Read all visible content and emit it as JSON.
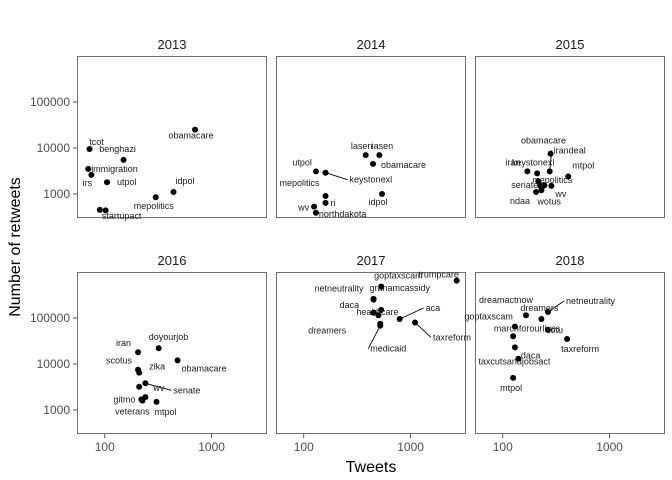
{
  "chart_data": {
    "type": "scatter",
    "xlabel": "Tweets",
    "ylabel": "Number of retweets",
    "xscale": "log10",
    "yscale": "log10",
    "xlim": [
      55,
      3300
    ],
    "ylim": [
      300,
      1000000
    ],
    "x_ticks": [
      {
        "value": 100,
        "label": "100"
      },
      {
        "value": 1000,
        "label": "1000"
      }
    ],
    "y_ticks": [
      {
        "value": 1000,
        "label": "1000"
      },
      {
        "value": 10000,
        "label": "10000"
      },
      {
        "value": 100000,
        "label": "100000"
      }
    ],
    "grid": false,
    "facets": [
      {
        "title": "2013",
        "points": [
          {
            "label": "obamacare",
            "x": 700,
            "y": 25000
          },
          {
            "label": "tcot",
            "x": 72,
            "y": 9500
          },
          {
            "label": "benghazi",
            "x": 150,
            "y": 5500
          },
          {
            "label": "immigration",
            "x": 70,
            "y": 3500
          },
          {
            "label": "irs",
            "x": 75,
            "y": 2600
          },
          {
            "label": "utpol",
            "x": 105,
            "y": 1800
          },
          {
            "label": "idpol",
            "x": 440,
            "y": 1100
          },
          {
            "label": "mepolitics",
            "x": 300,
            "y": 850
          },
          {
            "label": "startupact",
            "x": 90,
            "y": 450
          },
          {
            "label": "",
            "x": 102,
            "y": 440
          }
        ]
      },
      {
        "title": "2014",
        "points": [
          {
            "label": "lasen",
            "x": 380,
            "y": 7000
          },
          {
            "label": "iasen",
            "x": 510,
            "y": 7000
          },
          {
            "label": "obamacare",
            "x": 445,
            "y": 4500
          },
          {
            "label": "utpol",
            "x": 130,
            "y": 3100
          },
          {
            "label": "keystonexl",
            "x": 160,
            "y": 2900
          },
          {
            "label": "mepolitics",
            "x": 160,
            "y": 900
          },
          {
            "label": "idpol",
            "x": 540,
            "y": 1000
          },
          {
            "label": "wv",
            "x": 125,
            "y": 530
          },
          {
            "label": "ri",
            "x": 160,
            "y": 640
          },
          {
            "label": "northdakota",
            "x": 130,
            "y": 390
          }
        ]
      },
      {
        "title": "2015",
        "points": [
          {
            "label": "obamacare",
            "x": 280,
            "y": 7500
          },
          {
            "label": "irandeal",
            "x": 275,
            "y": 3100
          },
          {
            "label": "iran",
            "x": 170,
            "y": 3100
          },
          {
            "label": "keystonexl",
            "x": 210,
            "y": 2800
          },
          {
            "label": "mtpol",
            "x": 410,
            "y": 2400
          },
          {
            "label": "mepolitics",
            "x": 215,
            "y": 1900
          },
          {
            "label": "senate",
            "x": 245,
            "y": 1550
          },
          {
            "label": "",
            "x": 225,
            "y": 1500
          },
          {
            "label": "",
            "x": 235,
            "y": 1450
          },
          {
            "label": "wv",
            "x": 285,
            "y": 1500
          },
          {
            "label": "ndaa",
            "x": 205,
            "y": 1100
          },
          {
            "label": "wotus",
            "x": 230,
            "y": 1200
          }
        ]
      },
      {
        "title": "2016",
        "points": [
          {
            "label": "iran",
            "x": 205,
            "y": 18000
          },
          {
            "label": "doyourjob",
            "x": 320,
            "y": 22000
          },
          {
            "label": "obamacare",
            "x": 480,
            "y": 12000
          },
          {
            "label": "scotus",
            "x": 205,
            "y": 7500
          },
          {
            "label": "zika",
            "x": 210,
            "y": 6500
          },
          {
            "label": "senate",
            "x": 240,
            "y": 3800
          },
          {
            "label": "",
            "x": 210,
            "y": 3200
          },
          {
            "label": "wv",
            "x": 240,
            "y": 1900
          },
          {
            "label": "gitmo",
            "x": 220,
            "y": 1700
          },
          {
            "label": "veterans",
            "x": 225,
            "y": 1600
          },
          {
            "label": "mtpol",
            "x": 305,
            "y": 1500
          }
        ]
      },
      {
        "title": "2017",
        "points": [
          {
            "label": "trumpcare",
            "x": 2700,
            "y": 650000
          },
          {
            "label": "goptaxscam",
            "x": 530,
            "y": 480000
          },
          {
            "label": "grahamcassidy",
            "x": 450,
            "y": 260000
          },
          {
            "label": "netneutrality",
            "x": 450,
            "y": 250000
          },
          {
            "label": "daca",
            "x": 530,
            "y": 150000
          },
          {
            "label": "",
            "x": 450,
            "y": 130000
          },
          {
            "label": "aca",
            "x": 790,
            "y": 95000
          },
          {
            "label": "healthcare",
            "x": 500,
            "y": 115000
          },
          {
            "label": "dreamers",
            "x": 520,
            "y": 75000
          },
          {
            "label": "medicaid",
            "x": 520,
            "y": 68000
          },
          {
            "label": "taxreform",
            "x": 1100,
            "y": 80000
          }
        ]
      },
      {
        "title": "2018",
        "points": [
          {
            "label": "netneutrality",
            "x": 265,
            "y": 135000
          },
          {
            "label": "dreamactnow",
            "x": 165,
            "y": 115000
          },
          {
            "label": "dreamers",
            "x": 230,
            "y": 95000
          },
          {
            "label": "goptaxscam",
            "x": 130,
            "y": 65000
          },
          {
            "label": "sotu",
            "x": 265,
            "y": 55000
          },
          {
            "label": "marchforourlives",
            "x": 125,
            "y": 40000
          },
          {
            "label": "taxreform",
            "x": 400,
            "y": 35000
          },
          {
            "label": "daca",
            "x": 130,
            "y": 23000
          },
          {
            "label": "taxcutsandjobsact",
            "x": 140,
            "y": 13000
          },
          {
            "label": "mtpol",
            "x": 125,
            "y": 5000
          }
        ]
      }
    ]
  }
}
